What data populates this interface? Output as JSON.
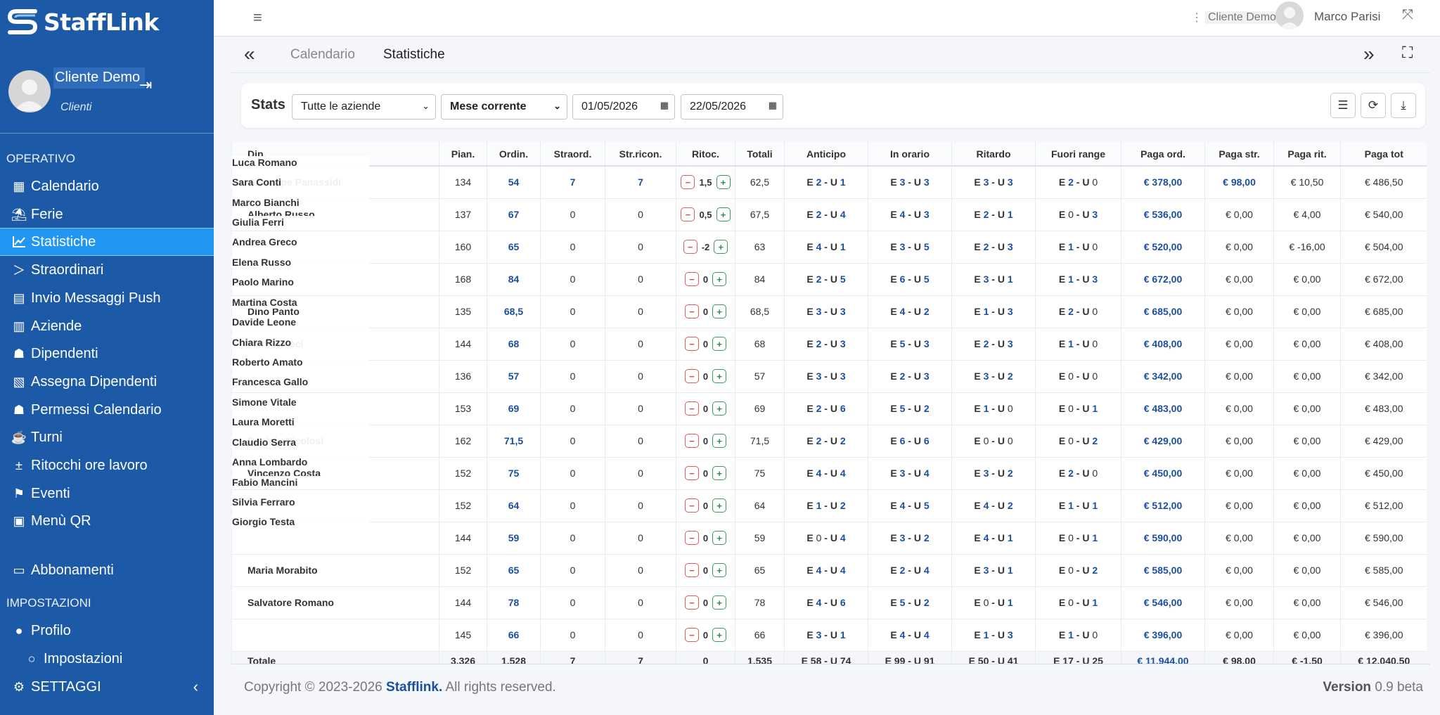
{
  "brand": {
    "name": "StaffLink"
  },
  "user_panel": {
    "name": "Cliente Demo",
    "role": "Clienti"
  },
  "sections": {
    "operativo": "OPERATIVO",
    "impostazioni": "IMPOSTAZIONI"
  },
  "nav": [
    "Calendario",
    "Ferie",
    "Statistiche",
    "Straordinari",
    "Invio Messaggi Push",
    "Aziende",
    "Dipendenti",
    "Assegna Dipendenti",
    "Permessi Calendario",
    "Turni",
    "Ritocchi ore lavoro",
    "Eventi",
    "Menù QR",
    "Abbonamenti",
    "Profilo",
    "Impostazioni",
    "SETTAGGI"
  ],
  "topbar": {
    "client": "Cliente Demo",
    "user": "Marco Parisi"
  },
  "tabs": {
    "calendario": "Calendario",
    "statistiche": "Statistiche"
  },
  "filters": {
    "label": "Stats",
    "company": "Tutte le aziende",
    "period": "Mese corrente",
    "date_from": "01/05/2026",
    "date_to": "22/05/2026"
  },
  "columns": [
    "Dip.",
    "Pian.",
    "Ordin.",
    "Straord.",
    "Str.ricon.",
    "Ritoc.",
    "Totali",
    "Anticipo",
    "In orario",
    "Ritardo",
    "Fuori range",
    "Paga ord.",
    "Paga str.",
    "Paga rit.",
    "Paga tot"
  ],
  "rows": [
    {
      "name": "Giuseppe Panassidi",
      "pian": "134",
      "ord": "54",
      "stra": "7",
      "stric": "7",
      "rit": "1,5",
      "tot": "62,5",
      "ant": [
        "2",
        "1"
      ],
      "ino": [
        "3",
        "3"
      ],
      "ritardo": [
        "3",
        "3"
      ],
      "fuori": [
        "2",
        "0"
      ],
      "pord": "€ 378,00",
      "pstr": "€ 98,00",
      "prit": "€ 10,50",
      "ptot": "€ 486,50"
    },
    {
      "name": "Alberto Russo",
      "pian": "137",
      "ord": "67",
      "stra": "0",
      "stric": "0",
      "rit": "0,5",
      "tot": "67,5",
      "ant": [
        "2",
        "4"
      ],
      "ino": [
        "4",
        "3"
      ],
      "ritardo": [
        "2",
        "1"
      ],
      "fuori": [
        "0",
        "3"
      ],
      "pord": "€ 536,00",
      "pstr": "€ 0,00",
      "prit": "€ 4,00",
      "ptot": "€ 540,00"
    },
    {
      "name": "",
      "pian": "160",
      "ord": "65",
      "stra": "0",
      "stric": "0",
      "rit": "-2",
      "tot": "63",
      "ant": [
        "4",
        "1"
      ],
      "ino": [
        "3",
        "5"
      ],
      "ritardo": [
        "2",
        "3"
      ],
      "fuori": [
        "1",
        "0"
      ],
      "pord": "€ 520,00",
      "pstr": "€ 0,00",
      "prit": "€ -16,00",
      "ptot": "€ 504,00"
    },
    {
      "name": "",
      "pian": "168",
      "ord": "84",
      "stra": "0",
      "stric": "0",
      "rit": "0",
      "tot": "84",
      "ant": [
        "2",
        "5"
      ],
      "ino": [
        "6",
        "5"
      ],
      "ritardo": [
        "3",
        "1"
      ],
      "fuori": [
        "1",
        "3"
      ],
      "pord": "€ 672,00",
      "pstr": "€ 0,00",
      "prit": "€ 0,00",
      "ptot": "€ 672,00"
    },
    {
      "name": "Dino Panto",
      "pian": "135",
      "ord": "68,5",
      "stra": "0",
      "stric": "0",
      "rit": "0",
      "tot": "68,5",
      "ant": [
        "3",
        "3"
      ],
      "ino": [
        "4",
        "2"
      ],
      "ritardo": [
        "1",
        "3"
      ],
      "fuori": [
        "2",
        "0"
      ],
      "pord": "€ 685,00",
      "pstr": "€ 0,00",
      "prit": "€ 0,00",
      "ptot": "€ 685,00"
    },
    {
      "name": "Marika Meci",
      "pian": "144",
      "ord": "68",
      "stra": "0",
      "stric": "0",
      "rit": "0",
      "tot": "68",
      "ant": [
        "2",
        "3"
      ],
      "ino": [
        "5",
        "3"
      ],
      "ritardo": [
        "2",
        "3"
      ],
      "fuori": [
        "1",
        "0"
      ],
      "pord": "€ 408,00",
      "pstr": "€ 0,00",
      "prit": "€ 0,00",
      "ptot": "€ 408,00"
    },
    {
      "name": "",
      "pian": "136",
      "ord": "57",
      "stra": "0",
      "stric": "0",
      "rit": "0",
      "tot": "57",
      "ant": [
        "3",
        "3"
      ],
      "ino": [
        "2",
        "3"
      ],
      "ritardo": [
        "3",
        "2"
      ],
      "fuori": [
        "0",
        "0"
      ],
      "pord": "€ 342,00",
      "pstr": "€ 0,00",
      "prit": "€ 0,00",
      "ptot": "€ 342,00"
    },
    {
      "name": "",
      "pian": "153",
      "ord": "69",
      "stra": "0",
      "stric": "0",
      "rit": "0",
      "tot": "69",
      "ant": [
        "2",
        "6"
      ],
      "ino": [
        "5",
        "2"
      ],
      "ritardo": [
        "1",
        "0"
      ],
      "fuori": [
        "0",
        "1"
      ],
      "pord": "€ 483,00",
      "pstr": "€ 0,00",
      "prit": "€ 0,00",
      "ptot": "€ 483,00"
    },
    {
      "name": "Daniele Nicolosi",
      "pian": "162",
      "ord": "71,5",
      "stra": "0",
      "stric": "0",
      "rit": "0",
      "tot": "71,5",
      "ant": [
        "2",
        "2"
      ],
      "ino": [
        "6",
        "6"
      ],
      "ritardo": [
        "0",
        "0"
      ],
      "fuori": [
        "0",
        "2"
      ],
      "pord": "€ 429,00",
      "pstr": "€ 0,00",
      "prit": "€ 0,00",
      "ptot": "€ 429,00"
    },
    {
      "name": "Vincenzo Costa",
      "pian": "152",
      "ord": "75",
      "stra": "0",
      "stric": "0",
      "rit": "0",
      "tot": "75",
      "ant": [
        "4",
        "4"
      ],
      "ino": [
        "3",
        "4"
      ],
      "ritardo": [
        "3",
        "2"
      ],
      "fuori": [
        "2",
        "0"
      ],
      "pord": "€ 450,00",
      "pstr": "€ 0,00",
      "prit": "€ 0,00",
      "ptot": "€ 450,00"
    },
    {
      "name": "",
      "pian": "152",
      "ord": "64",
      "stra": "0",
      "stric": "0",
      "rit": "0",
      "tot": "64",
      "ant": [
        "1",
        "2"
      ],
      "ino": [
        "4",
        "5"
      ],
      "ritardo": [
        "4",
        "2"
      ],
      "fuori": [
        "1",
        "1"
      ],
      "pord": "€ 512,00",
      "pstr": "€ 0,00",
      "prit": "€ 0,00",
      "ptot": "€ 512,00"
    },
    {
      "name": "",
      "pian": "144",
      "ord": "59",
      "stra": "0",
      "stric": "0",
      "rit": "0",
      "tot": "59",
      "ant": [
        "0",
        "4"
      ],
      "ino": [
        "3",
        "2"
      ],
      "ritardo": [
        "4",
        "1"
      ],
      "fuori": [
        "0",
        "1"
      ],
      "pord": "€ 590,00",
      "pstr": "€ 0,00",
      "prit": "€ 0,00",
      "ptot": "€ 590,00"
    },
    {
      "name": "Maria Morabito",
      "pian": "152",
      "ord": "65",
      "stra": "0",
      "stric": "0",
      "rit": "0",
      "tot": "65",
      "ant": [
        "4",
        "4"
      ],
      "ino": [
        "2",
        "4"
      ],
      "ritardo": [
        "3",
        "1"
      ],
      "fuori": [
        "0",
        "2"
      ],
      "pord": "€ 585,00",
      "pstr": "€ 0,00",
      "prit": "€ 0,00",
      "ptot": "€ 585,00"
    },
    {
      "name": "Salvatore Romano",
      "pian": "144",
      "ord": "78",
      "stra": "0",
      "stric": "0",
      "rit": "0",
      "tot": "78",
      "ant": [
        "4",
        "6"
      ],
      "ino": [
        "5",
        "2"
      ],
      "ritardo": [
        "0",
        "1"
      ],
      "fuori": [
        "0",
        "1"
      ],
      "pord": "€ 546,00",
      "pstr": "€ 0,00",
      "prit": "€ 0,00",
      "ptot": "€ 546,00"
    },
    {
      "name": "",
      "pian": "145",
      "ord": "66",
      "stra": "0",
      "stric": "0",
      "rit": "0",
      "tot": "66",
      "ant": [
        "3",
        "1"
      ],
      "ino": [
        "4",
        "4"
      ],
      "ritardo": [
        "1",
        "3"
      ],
      "fuori": [
        "1",
        "0"
      ],
      "pord": "€ 396,00",
      "pstr": "€ 0,00",
      "prit": "€ 0,00",
      "ptot": "€ 396,00"
    }
  ],
  "overlay_names": [
    "Luca Romano",
    "Sara Conti",
    "Marco Bianchi",
    "Giulia Ferri",
    "Andrea Greco",
    "Elena Russo",
    "Paolo Marino",
    "Martina Costa",
    "Davide Leone",
    "Chiara Rizzo",
    "Roberto Amato",
    "Francesca Gallo",
    "Simone Vitale",
    "Laura Moretti",
    "Claudio Serra",
    "Anna Lombardo",
    "Fabio Mancini",
    "Silvia Ferraro",
    "Giorgio Testa"
  ],
  "totals": {
    "label": "Totale",
    "pian": "3.326",
    "ord": "1.528",
    "stra": "7",
    "stric": "7",
    "rit": "0",
    "tot": "1.535",
    "ant": "E 58 - U 74",
    "ino": "E 99 - U 91",
    "ritardo": "E 50 - U 41",
    "fuori": "E 17 - U 25",
    "pord": "€ 11.944,00",
    "pstr": "€ 98,00",
    "prit": "€ -1,50",
    "ptot": "€ 12.040,50"
  },
  "footer": {
    "copyright_prefix": "Copyright © 2023-2026",
    "brand": "Stafflink.",
    "rights": "All rights reserved.",
    "version_label": "Version",
    "version": "0.9 beta"
  },
  "colors": {
    "sidebar": "#1c5aa8",
    "active": "#2196f3",
    "link": "#1a4fa0"
  }
}
